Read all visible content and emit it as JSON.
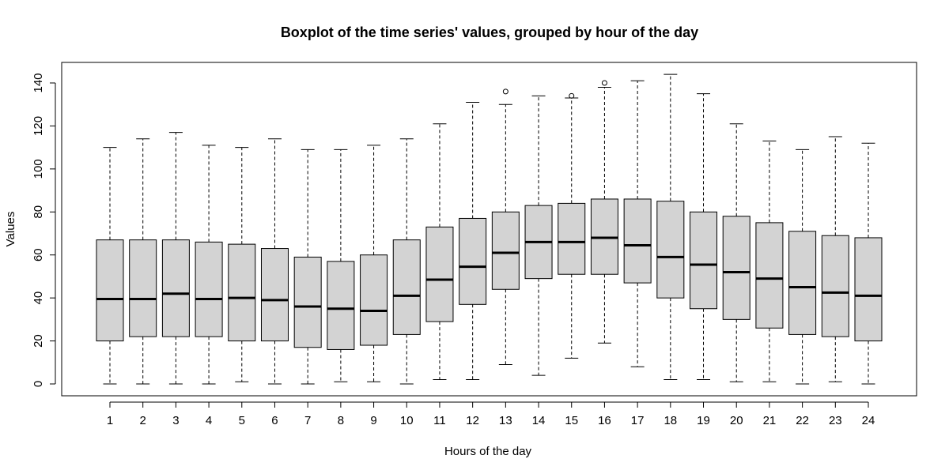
{
  "chart_data": {
    "type": "boxplot",
    "title": "Boxplot of the time series' values, grouped by hour of the day",
    "xlabel": "Hours of the day",
    "ylabel": "Values",
    "categories": [
      "1",
      "2",
      "3",
      "4",
      "5",
      "6",
      "7",
      "8",
      "9",
      "10",
      "11",
      "12",
      "13",
      "14",
      "15",
      "16",
      "17",
      "18",
      "19",
      "20",
      "21",
      "22",
      "23",
      "24"
    ],
    "ylim": [
      -5,
      150
    ],
    "yticks": [
      0,
      20,
      40,
      60,
      80,
      100,
      120,
      140
    ],
    "box_fill": "#d3d3d3",
    "stroke": "#000000",
    "boxes": [
      {
        "min": 0,
        "q1": 20,
        "median": 39.5,
        "q3": 67,
        "max": 110,
        "outliers": []
      },
      {
        "min": 0,
        "q1": 22,
        "median": 39.5,
        "q3": 67,
        "max": 114,
        "outliers": []
      },
      {
        "min": 0,
        "q1": 22,
        "median": 42,
        "q3": 67,
        "max": 117,
        "outliers": []
      },
      {
        "min": 0,
        "q1": 22,
        "median": 39.5,
        "q3": 66,
        "max": 111,
        "outliers": []
      },
      {
        "min": 1,
        "q1": 20,
        "median": 40,
        "q3": 65,
        "max": 110,
        "outliers": []
      },
      {
        "min": 0,
        "q1": 20,
        "median": 39,
        "q3": 63,
        "max": 114,
        "outliers": []
      },
      {
        "min": 0,
        "q1": 17,
        "median": 36,
        "q3": 59,
        "max": 109,
        "outliers": []
      },
      {
        "min": 1,
        "q1": 16,
        "median": 35,
        "q3": 57,
        "max": 109,
        "outliers": []
      },
      {
        "min": 1,
        "q1": 18,
        "median": 34,
        "q3": 60,
        "max": 111,
        "outliers": []
      },
      {
        "min": 0,
        "q1": 23,
        "median": 41,
        "q3": 67,
        "max": 114,
        "outliers": []
      },
      {
        "min": 2,
        "q1": 29,
        "median": 48.5,
        "q3": 73,
        "max": 121,
        "outliers": []
      },
      {
        "min": 2,
        "q1": 37,
        "median": 54.5,
        "q3": 77,
        "max": 131,
        "outliers": []
      },
      {
        "min": 9,
        "q1": 44,
        "median": 61,
        "q3": 80,
        "max": 130,
        "outliers": [
          136
        ]
      },
      {
        "min": 4,
        "q1": 49,
        "median": 66,
        "q3": 83,
        "max": 134,
        "outliers": []
      },
      {
        "min": 12,
        "q1": 51,
        "median": 66,
        "q3": 84,
        "max": 133,
        "outliers": [
          134
        ]
      },
      {
        "min": 19,
        "q1": 51,
        "median": 68,
        "q3": 86,
        "max": 138,
        "outliers": [
          140
        ]
      },
      {
        "min": 8,
        "q1": 47,
        "median": 64.5,
        "q3": 86,
        "max": 141,
        "outliers": []
      },
      {
        "min": 2,
        "q1": 40,
        "median": 59,
        "q3": 85,
        "max": 144,
        "outliers": []
      },
      {
        "min": 2,
        "q1": 35,
        "median": 55.5,
        "q3": 80,
        "max": 135,
        "outliers": []
      },
      {
        "min": 1,
        "q1": 30,
        "median": 52,
        "q3": 78,
        "max": 121,
        "outliers": []
      },
      {
        "min": 1,
        "q1": 26,
        "median": 49,
        "q3": 75,
        "max": 113,
        "outliers": []
      },
      {
        "min": 0,
        "q1": 23,
        "median": 45,
        "q3": 71,
        "max": 109,
        "outliers": []
      },
      {
        "min": 1,
        "q1": 22,
        "median": 42.5,
        "q3": 69,
        "max": 115,
        "outliers": []
      },
      {
        "min": 0,
        "q1": 20,
        "median": 41,
        "q3": 68,
        "max": 112,
        "outliers": []
      }
    ],
    "grid": false,
    "legend": "none"
  }
}
